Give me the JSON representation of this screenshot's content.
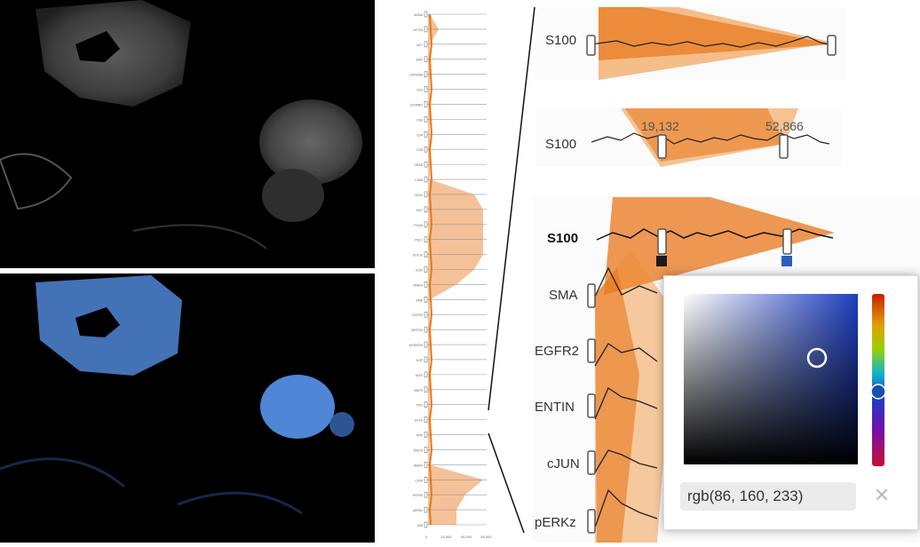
{
  "colors": {
    "accent_orange": "#e8761a",
    "selection_blue": "#5680c8",
    "tissue_blue": "#4f86d6"
  },
  "strip": {
    "markers": [
      "ASMA",
      "ACTIN",
      "AKT",
      "ERK",
      "CATENIN",
      "CD3",
      "CD45RO",
      "CD8",
      "CD4",
      "CD8",
      "GRZB",
      "CD68",
      "CDH1",
      "KI67",
      "PCNA",
      "PDL1",
      "SOX10",
      "S100",
      "VIMEN",
      "SMA",
      "EGFR2",
      "NESTIN",
      "KERATIN",
      "HSP",
      "MITF",
      "NGFR",
      "PD1",
      "ACTA",
      "PRF",
      "MGFR",
      "SMAD",
      "cJUN",
      "HSP90",
      "pERKz",
      "pS6"
    ],
    "axis_ticks": [
      "0",
      "20,000",
      "40,000",
      "60,000"
    ]
  },
  "panel_top": {
    "marker": "S100"
  },
  "panel_mid": {
    "marker": "S100",
    "range_low": "19,132",
    "range_high": "52,866"
  },
  "panel_big": {
    "marker": "S100",
    "rows": [
      {
        "label": "SMA"
      },
      {
        "label": "EGFR2"
      },
      {
        "label": "ENTIN"
      },
      {
        "label": "cJUN"
      },
      {
        "label": "pERKz"
      }
    ],
    "swatch_low_color": "#1a1a1a",
    "swatch_high_color": "#2a5fb8"
  },
  "color_picker": {
    "value": "rgb(86, 160, 233)",
    "close_icon": "close-icon"
  }
}
